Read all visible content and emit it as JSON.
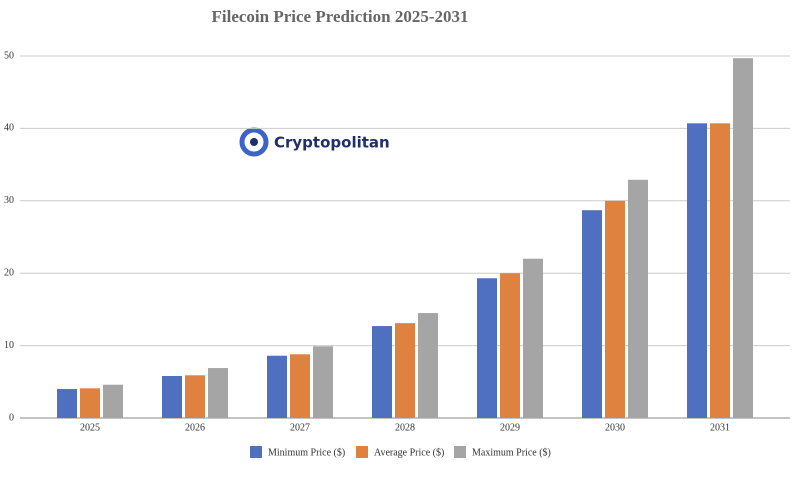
{
  "chart_data": {
    "type": "bar",
    "title": "Filecoin Price Prediction 2025-2031",
    "watermark": "Cryptopolitan",
    "categories": [
      "2025",
      "2026",
      "2027",
      "2028",
      "2029",
      "2030",
      "2031"
    ],
    "series": [
      {
        "name": "Minimum Price ($)",
        "color": "#4f6fbf",
        "values": [
          4.0,
          5.8,
          8.6,
          12.7,
          19.3,
          28.7,
          40.7
        ]
      },
      {
        "name": "Average Price ($)",
        "color": "#e0823f",
        "values": [
          4.1,
          5.9,
          8.8,
          13.1,
          20.0,
          30.0,
          40.7
        ]
      },
      {
        "name": "Maximum Price ($)",
        "color": "#a5a5a5",
        "values": [
          4.6,
          6.9,
          9.9,
          14.5,
          22.0,
          32.9,
          49.7
        ]
      }
    ],
    "ylim": [
      0,
      50
    ],
    "yticks": [
      0,
      10,
      20,
      30,
      40,
      50
    ],
    "grid": true,
    "legend": "bottom"
  }
}
